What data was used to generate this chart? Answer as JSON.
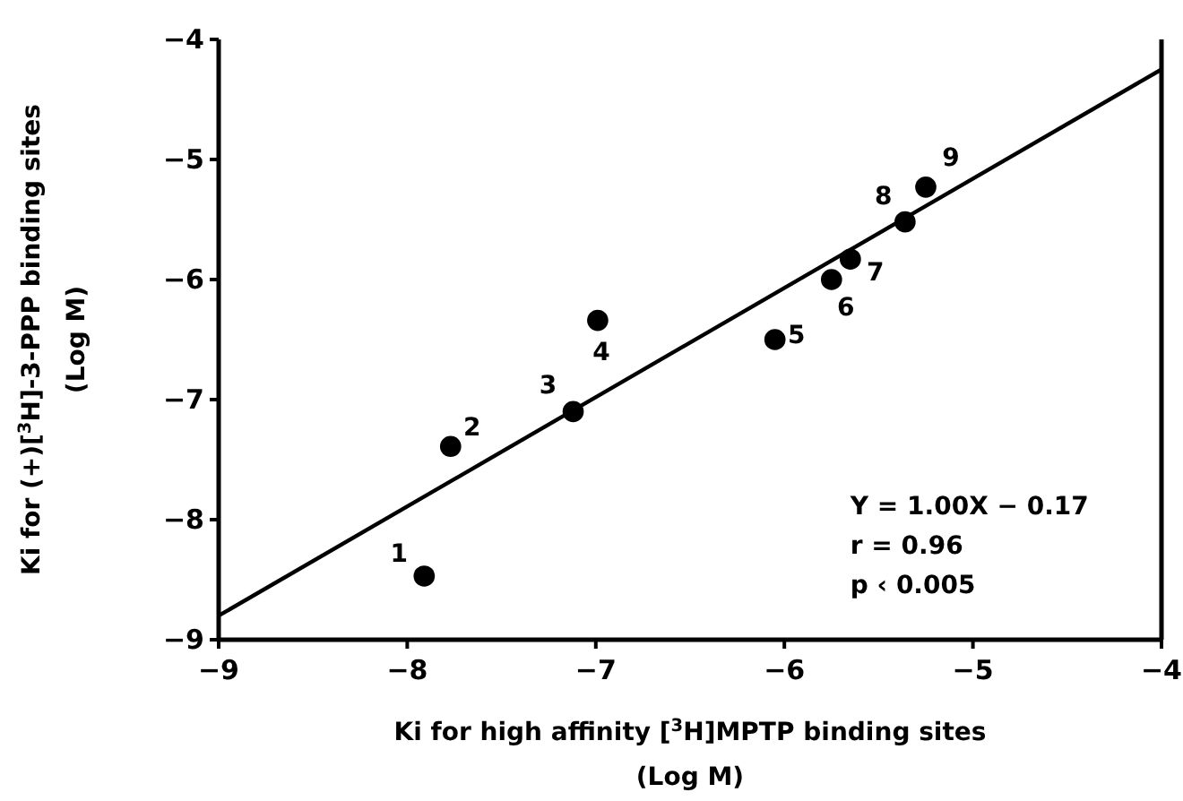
{
  "chart_data": {
    "type": "scatter",
    "xlabel": "Ki for high affinity [$^{3}$H]MPTP binding sites\n(Log M)",
    "ylabel": "Ki for (+)[$^{3}$H]-3-PPP binding sites\n(Log M)",
    "xlim": [
      -9,
      -4
    ],
    "ylim": [
      -9,
      -4
    ],
    "xticks": [
      -9,
      -8,
      -7,
      -6,
      -5,
      -4
    ],
    "yticks": [
      -9,
      -8,
      -7,
      -6,
      -5,
      -4
    ],
    "grid": false,
    "series": [
      {
        "marker": "circle",
        "color": "#000000",
        "x": [
          -7.91,
          -7.77,
          -7.12,
          -6.99,
          -6.05,
          -5.75,
          -5.65,
          -5.36,
          -5.25
        ],
        "values": [
          -8.47,
          -7.39,
          -7.1,
          -6.34,
          -6.5,
          -6.0,
          -5.83,
          -5.52,
          -5.23
        ]
      },
      {
        "type": "line",
        "color": "#000000",
        "x": [
          -9,
          -4
        ],
        "values": [
          -8.8,
          -4.25
        ]
      }
    ],
    "annotations": [
      {
        "text": "1",
        "x": -7.91,
        "y": -8.47
      },
      {
        "text": "2",
        "x": -7.77,
        "y": -7.39
      },
      {
        "text": "3",
        "x": -7.12,
        "y": -7.1
      },
      {
        "text": "4",
        "x": -6.99,
        "y": -6.34
      },
      {
        "text": "5",
        "x": -6.05,
        "y": -6.5
      },
      {
        "text": "6",
        "x": -5.75,
        "y": -6.0
      },
      {
        "text": "7",
        "x": -5.65,
        "y": -5.83
      },
      {
        "text": "8",
        "x": -5.36,
        "y": -5.52
      },
      {
        "text": "9",
        "x": -5.25,
        "y": -5.23
      },
      "Y = 1.00X − 0.17",
      "r = 0.96",
      "p ‹ 0.005"
    ]
  }
}
